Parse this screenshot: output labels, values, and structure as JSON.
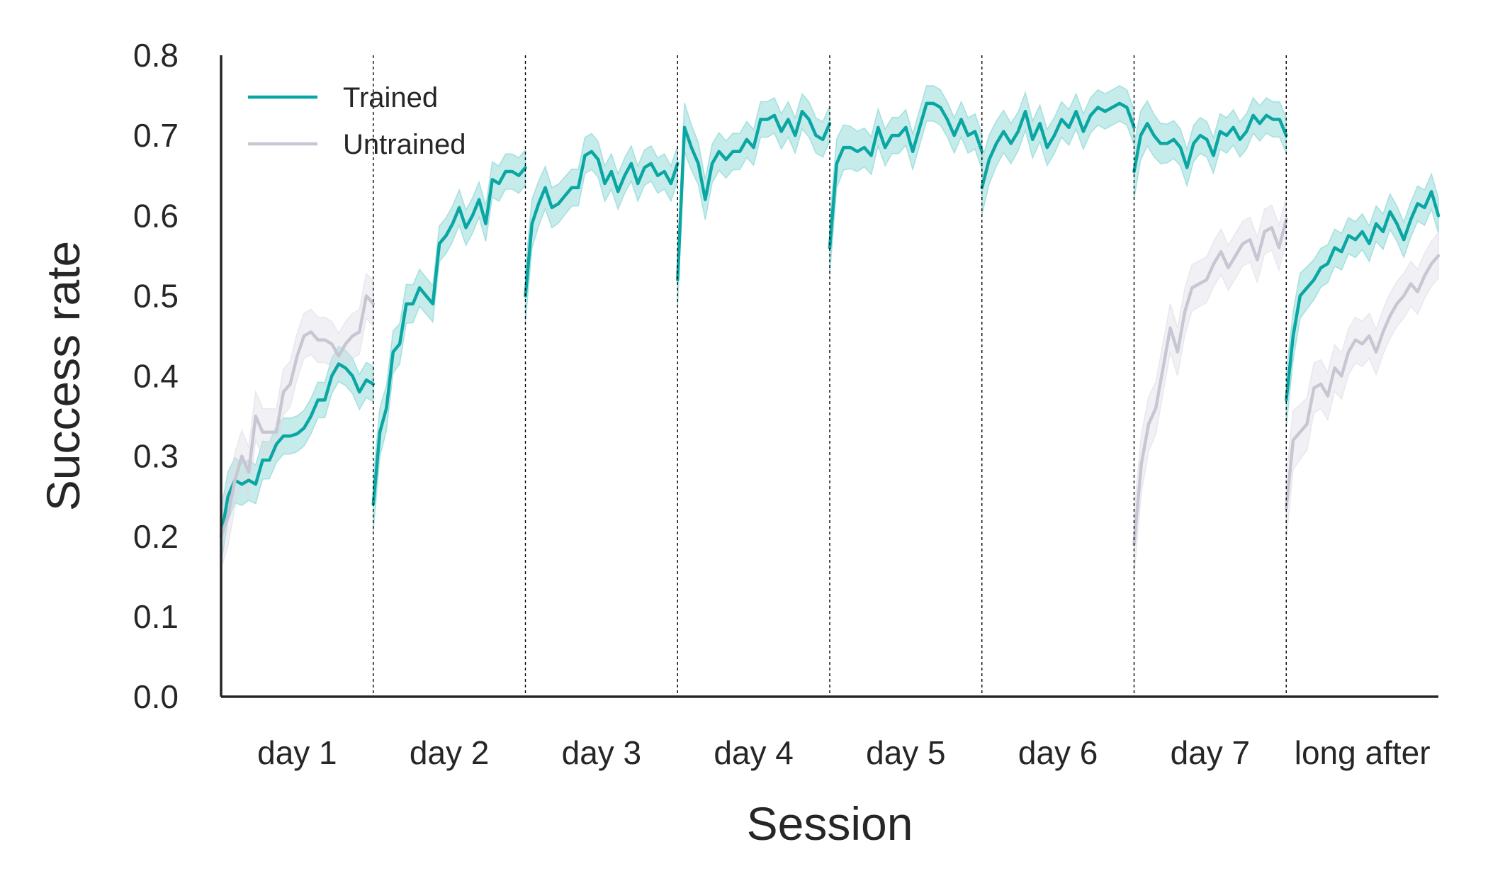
{
  "chart_data": {
    "type": "line",
    "xlabel": "Session",
    "ylabel": "Success rate",
    "ylim": [
      0,
      0.8
    ],
    "yticks": [
      "0.0",
      "0.1",
      "0.2",
      "0.3",
      "0.4",
      "0.5",
      "0.6",
      "0.7",
      "0.8"
    ],
    "xlim": [
      0,
      8
    ],
    "sessions": [
      "day 1",
      "day 2",
      "day 3",
      "day 4",
      "day 5",
      "day 6",
      "day 7",
      "long after"
    ],
    "session_boundaries": [
      1,
      2,
      3,
      4,
      5,
      6,
      7
    ],
    "legend": {
      "location": "top-left",
      "entries": [
        "Trained",
        "Untrained"
      ]
    },
    "series": [
      {
        "name": "Trained",
        "color": "#0aa6a3",
        "band_color": "#7fd3d1",
        "segments": [
          {
            "session": "day 1",
            "values": [
              0.2,
              0.25,
              0.27,
              0.265,
              0.27,
              0.265,
              0.295,
              0.295,
              0.315,
              0.325,
              0.325,
              0.328,
              0.335,
              0.35,
              0.37,
              0.37,
              0.4,
              0.415,
              0.41,
              0.4,
              0.38,
              0.395,
              0.39
            ]
          },
          {
            "session": "day 2",
            "values": [
              0.24,
              0.33,
              0.36,
              0.43,
              0.44,
              0.49,
              0.49,
              0.51,
              0.5,
              0.49,
              0.565,
              0.575,
              0.59,
              0.61,
              0.585,
              0.6,
              0.62,
              0.59,
              0.645,
              0.64,
              0.655,
              0.655,
              0.65,
              0.66
            ]
          },
          {
            "session": "day 3",
            "values": [
              0.5,
              0.59,
              0.615,
              0.635,
              0.61,
              0.615,
              0.625,
              0.635,
              0.635,
              0.675,
              0.68,
              0.67,
              0.64,
              0.655,
              0.63,
              0.65,
              0.665,
              0.64,
              0.66,
              0.665,
              0.65,
              0.655,
              0.64,
              0.665
            ]
          },
          {
            "session": "day 4",
            "values": [
              0.52,
              0.71,
              0.685,
              0.665,
              0.62,
              0.665,
              0.68,
              0.67,
              0.68,
              0.68,
              0.695,
              0.685,
              0.72,
              0.72,
              0.725,
              0.705,
              0.72,
              0.7,
              0.73,
              0.72,
              0.7,
              0.695,
              0.715
            ]
          },
          {
            "session": "day 5",
            "values": [
              0.56,
              0.665,
              0.685,
              0.685,
              0.68,
              0.685,
              0.675,
              0.71,
              0.685,
              0.7,
              0.7,
              0.71,
              0.68,
              0.71,
              0.74,
              0.74,
              0.735,
              0.72,
              0.7,
              0.72,
              0.7,
              0.705,
              0.68
            ]
          },
          {
            "session": "day 6",
            "values": [
              0.635,
              0.67,
              0.69,
              0.705,
              0.69,
              0.705,
              0.73,
              0.695,
              0.715,
              0.685,
              0.7,
              0.72,
              0.71,
              0.73,
              0.705,
              0.725,
              0.735,
              0.73,
              0.735,
              0.74,
              0.735,
              0.71
            ]
          },
          {
            "session": "day 7",
            "values": [
              0.655,
              0.7,
              0.715,
              0.7,
              0.69,
              0.69,
              0.695,
              0.685,
              0.66,
              0.69,
              0.7,
              0.695,
              0.675,
              0.705,
              0.7,
              0.71,
              0.695,
              0.705,
              0.725,
              0.715,
              0.725,
              0.72,
              0.72,
              0.7
            ]
          },
          {
            "session": "long after",
            "values": [
              0.37,
              0.45,
              0.5,
              0.51,
              0.52,
              0.535,
              0.54,
              0.56,
              0.555,
              0.575,
              0.57,
              0.58,
              0.565,
              0.59,
              0.58,
              0.605,
              0.59,
              0.57,
              0.595,
              0.615,
              0.61,
              0.63,
              0.6
            ]
          }
        ]
      },
      {
        "name": "Untrained",
        "color": "#c7c7d3",
        "band_color": "#dcdce6",
        "segments": [
          {
            "session": "day 1",
            "values": [
              0.2,
              0.225,
              0.27,
              0.3,
              0.28,
              0.35,
              0.33,
              0.33,
              0.33,
              0.38,
              0.39,
              0.425,
              0.45,
              0.455,
              0.445,
              0.445,
              0.44,
              0.425,
              0.44,
              0.45,
              0.455,
              0.5,
              0.49
            ]
          },
          {
            "session": "day 7",
            "values": [
              0.19,
              0.29,
              0.34,
              0.36,
              0.41,
              0.46,
              0.43,
              0.48,
              0.51,
              0.515,
              0.52,
              0.54,
              0.555,
              0.535,
              0.55,
              0.565,
              0.57,
              0.545,
              0.58,
              0.585,
              0.56,
              0.595
            ]
          },
          {
            "session": "long after",
            "values": [
              0.235,
              0.32,
              0.33,
              0.34,
              0.385,
              0.39,
              0.375,
              0.41,
              0.4,
              0.43,
              0.445,
              0.44,
              0.45,
              0.43,
              0.455,
              0.475,
              0.49,
              0.5,
              0.515,
              0.505,
              0.525,
              0.54,
              0.55
            ]
          }
        ]
      }
    ]
  }
}
